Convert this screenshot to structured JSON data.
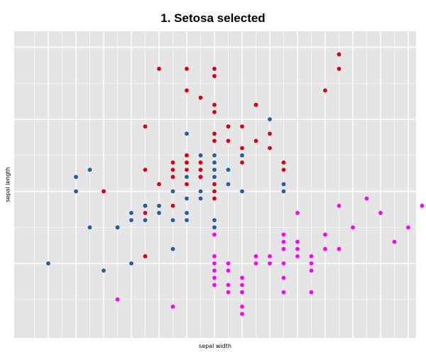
{
  "chart_data": {
    "type": "scatter",
    "title": "1. Setosa selected",
    "xlabel": "sepal width",
    "ylabel": "sepal length",
    "xlim": [
      1.9,
      4.7
    ],
    "ylim": [
      4.2,
      8.2
    ],
    "grid": true,
    "colors": {
      "blue": "#2060a0",
      "red": "#dd0010",
      "magenta": "#ff00ff",
      "panel": "#e5e5e5",
      "grid": "#ffffff"
    },
    "series": [
      {
        "color": "blue",
        "points": [
          [
            2.0,
            5.0
          ],
          [
            2.2,
            6.0
          ],
          [
            2.2,
            6.2
          ],
          [
            2.3,
            5.5
          ],
          [
            2.3,
            6.3
          ],
          [
            2.4,
            4.9
          ],
          [
            2.5,
            5.5
          ],
          [
            2.5,
            5.5
          ],
          [
            2.6,
            5.0
          ],
          [
            2.6,
            5.7
          ],
          [
            2.6,
            5.6
          ],
          [
            2.7,
            5.6
          ],
          [
            2.7,
            5.8
          ],
          [
            2.7,
            5.8
          ],
          [
            2.8,
            5.8
          ],
          [
            2.8,
            5.7
          ],
          [
            2.9,
            5.6
          ],
          [
            2.9,
            6.0
          ],
          [
            2.9,
            5.2
          ],
          [
            3.0,
            5.6
          ],
          [
            3.0,
            5.7
          ],
          [
            3.0,
            5.9
          ],
          [
            3.0,
            6.8
          ],
          [
            3.0,
            6.4
          ],
          [
            3.0,
            6.2
          ],
          [
            3.1,
            6.5
          ],
          [
            3.1,
            5.9
          ],
          [
            3.1,
            6.3
          ],
          [
            3.1,
            6.0
          ],
          [
            3.1,
            6.2
          ],
          [
            3.2,
            6.2
          ],
          [
            3.2,
            6.5
          ],
          [
            3.2,
            6.3
          ],
          [
            3.2,
            5.5
          ],
          [
            3.2,
            5.6
          ],
          [
            3.2,
            6.4
          ],
          [
            3.3,
            6.9
          ],
          [
            3.3,
            6.3
          ],
          [
            3.3,
            6.1
          ],
          [
            3.4,
            6.5
          ],
          [
            3.4,
            6.0
          ],
          [
            3.5,
            7.2
          ],
          [
            3.6,
            7.0
          ],
          [
            3.7,
            6.0
          ],
          [
            3.7,
            6.1
          ]
        ]
      },
      {
        "color": "red",
        "points": [
          [
            2.4,
            6.0
          ],
          [
            2.4,
            6.0
          ],
          [
            2.7,
            5.1
          ],
          [
            2.7,
            5.7
          ],
          [
            2.7,
            6.3
          ],
          [
            2.7,
            6.9
          ],
          [
            2.8,
            6.1
          ],
          [
            2.8,
            7.7
          ],
          [
            2.9,
            6.2
          ],
          [
            2.9,
            5.8
          ],
          [
            2.9,
            6.3
          ],
          [
            2.9,
            6.4
          ],
          [
            3.0,
            7.7
          ],
          [
            3.0,
            7.4
          ],
          [
            3.0,
            6.4
          ],
          [
            3.0,
            6.3
          ],
          [
            3.0,
            6.5
          ],
          [
            3.0,
            6.1
          ],
          [
            3.1,
            7.3
          ],
          [
            3.1,
            6.4
          ],
          [
            3.1,
            6.3
          ],
          [
            3.1,
            6.2
          ],
          [
            3.2,
            7.7
          ],
          [
            3.2,
            7.6
          ],
          [
            3.2,
            7.2
          ],
          [
            3.2,
            7.1
          ],
          [
            3.2,
            6.8
          ],
          [
            3.2,
            6.7
          ],
          [
            3.2,
            6.1
          ],
          [
            3.2,
            6.0
          ],
          [
            3.2,
            5.9
          ],
          [
            3.3,
            6.9
          ],
          [
            3.3,
            6.7
          ],
          [
            3.4,
            6.9
          ],
          [
            3.4,
            6.6
          ],
          [
            3.4,
            6.4
          ],
          [
            3.5,
            6.7
          ],
          [
            3.5,
            7.2
          ],
          [
            3.6,
            6.8
          ],
          [
            3.6,
            6.6
          ],
          [
            3.7,
            6.4
          ],
          [
            3.7,
            6.3
          ],
          [
            4.0,
            7.4
          ],
          [
            4.1,
            7.9
          ],
          [
            4.1,
            7.7
          ]
        ]
      },
      {
        "color": "magenta",
        "points": [
          [
            2.5,
            4.5
          ],
          [
            2.9,
            4.4
          ],
          [
            3.2,
            5.0
          ],
          [
            3.2,
            5.1
          ],
          [
            3.2,
            4.9
          ],
          [
            3.2,
            4.8
          ],
          [
            3.2,
            4.7
          ],
          [
            3.2,
            5.4
          ],
          [
            3.3,
            5.0
          ],
          [
            3.3,
            4.9
          ],
          [
            3.3,
            4.7
          ],
          [
            3.3,
            4.6
          ],
          [
            3.4,
            4.8
          ],
          [
            3.4,
            4.4
          ],
          [
            3.4,
            4.3
          ],
          [
            3.4,
            4.6
          ],
          [
            3.4,
            4.7
          ],
          [
            3.5,
            5.1
          ],
          [
            3.5,
            5.0
          ],
          [
            3.6,
            5.0
          ],
          [
            3.6,
            5.1
          ],
          [
            3.7,
            5.2
          ],
          [
            3.7,
            5.4
          ],
          [
            3.7,
            5.3
          ],
          [
            3.7,
            4.8
          ],
          [
            3.7,
            4.6
          ],
          [
            3.7,
            5.0
          ],
          [
            3.8,
            5.1
          ],
          [
            3.8,
            5.2
          ],
          [
            3.8,
            5.3
          ],
          [
            3.8,
            5.7
          ],
          [
            3.9,
            5.1
          ],
          [
            3.9,
            5.0
          ],
          [
            3.9,
            4.9
          ],
          [
            3.9,
            4.6
          ],
          [
            4.0,
            5.4
          ],
          [
            4.0,
            5.2
          ],
          [
            4.1,
            5.2
          ],
          [
            4.1,
            5.8
          ],
          [
            4.2,
            5.5
          ],
          [
            4.3,
            5.9
          ],
          [
            4.4,
            5.7
          ],
          [
            4.5,
            5.3
          ],
          [
            4.6,
            5.5
          ],
          [
            4.7,
            5.8
          ]
        ]
      }
    ]
  }
}
